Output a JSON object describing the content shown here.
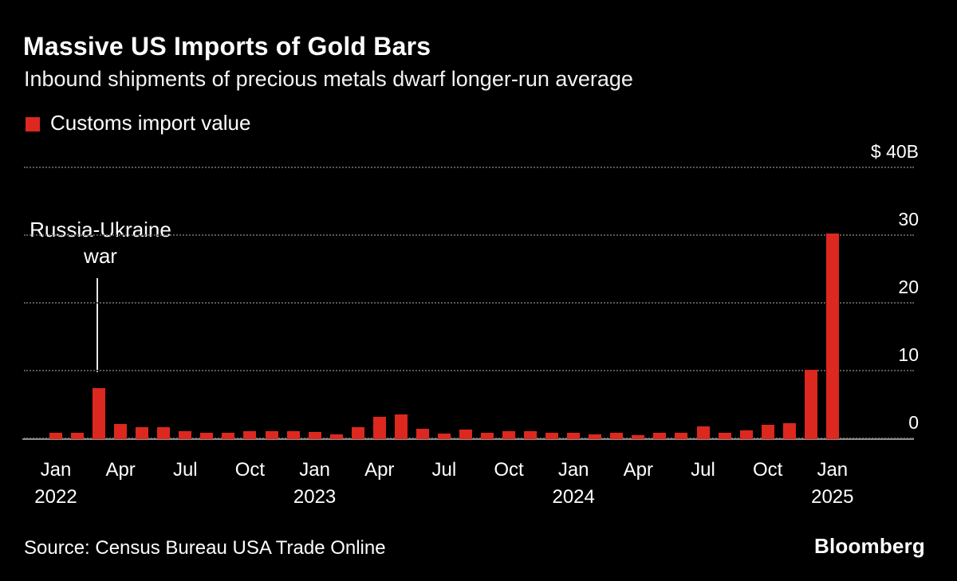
{
  "title": "Massive US Imports of Gold Bars",
  "subtitle": "Inbound shipments of precious metals dwarf longer-run average",
  "legend": {
    "label": "Customs import value",
    "color": "#dc281e"
  },
  "annotation": {
    "line1": "Russia-Ukraine",
    "line2": "war"
  },
  "source": "Source: Census Bureau USA Trade Online",
  "brand": "Bloomberg",
  "colors": {
    "background": "#000000",
    "bar": "#dc281e",
    "grid": "#595959",
    "axis": "#8d8d8d",
    "text": "#ffffff",
    "annotation_line": "#e6e6e6"
  },
  "chart_data": {
    "type": "bar",
    "title": "Massive US Imports of Gold Bars",
    "subtitle": "Inbound shipments of precious metals dwarf longer-run average",
    "legend": "Customs import value",
    "unit": "USD billions",
    "ylabel": "$ 40B",
    "ylim": [
      0,
      40
    ],
    "yticks": [
      0,
      10,
      20,
      30,
      40
    ],
    "ytick_labels": [
      "0",
      "10",
      "20",
      "30",
      "$ 40B"
    ],
    "grid": "dotted horizontal",
    "legend_position": "top-left",
    "annotation": "Russia-Ukraine war (vertical marker between Feb and Mar 2022)",
    "x": [
      "2022-01",
      "2022-02",
      "2022-03",
      "2022-04",
      "2022-05",
      "2022-06",
      "2022-07",
      "2022-08",
      "2022-09",
      "2022-10",
      "2022-11",
      "2022-12",
      "2023-01",
      "2023-02",
      "2023-03",
      "2023-04",
      "2023-05",
      "2023-06",
      "2023-07",
      "2023-08",
      "2023-09",
      "2023-10",
      "2023-11",
      "2023-12",
      "2024-01",
      "2024-02",
      "2024-03",
      "2024-04",
      "2024-05",
      "2024-06",
      "2024-07",
      "2024-08",
      "2024-09",
      "2024-10",
      "2024-11",
      "2024-12",
      "2025-01"
    ],
    "values": [
      1.0,
      1.0,
      7.5,
      2.2,
      1.8,
      1.8,
      1.2,
      1.0,
      0.9,
      1.2,
      1.2,
      1.2,
      1.1,
      0.7,
      1.8,
      3.3,
      3.6,
      1.5,
      0.8,
      1.4,
      1.0,
      1.2,
      1.2,
      0.9,
      0.9,
      0.7,
      1.0,
      0.6,
      1.0,
      1.0,
      1.9,
      0.9,
      1.3,
      2.1,
      2.3,
      10.2,
      30.4
    ],
    "xticks": [
      {
        "index": 0,
        "month": "Jan",
        "year": "2022"
      },
      {
        "index": 3,
        "month": "Apr"
      },
      {
        "index": 6,
        "month": "Jul"
      },
      {
        "index": 9,
        "month": "Oct"
      },
      {
        "index": 12,
        "month": "Jan",
        "year": "2023"
      },
      {
        "index": 15,
        "month": "Apr"
      },
      {
        "index": 18,
        "month": "Jul"
      },
      {
        "index": 21,
        "month": "Oct"
      },
      {
        "index": 24,
        "month": "Jan",
        "year": "2024"
      },
      {
        "index": 27,
        "month": "Apr"
      },
      {
        "index": 30,
        "month": "Jul"
      },
      {
        "index": 33,
        "month": "Oct"
      },
      {
        "index": 36,
        "month": "Jan",
        "year": "2025"
      }
    ]
  }
}
